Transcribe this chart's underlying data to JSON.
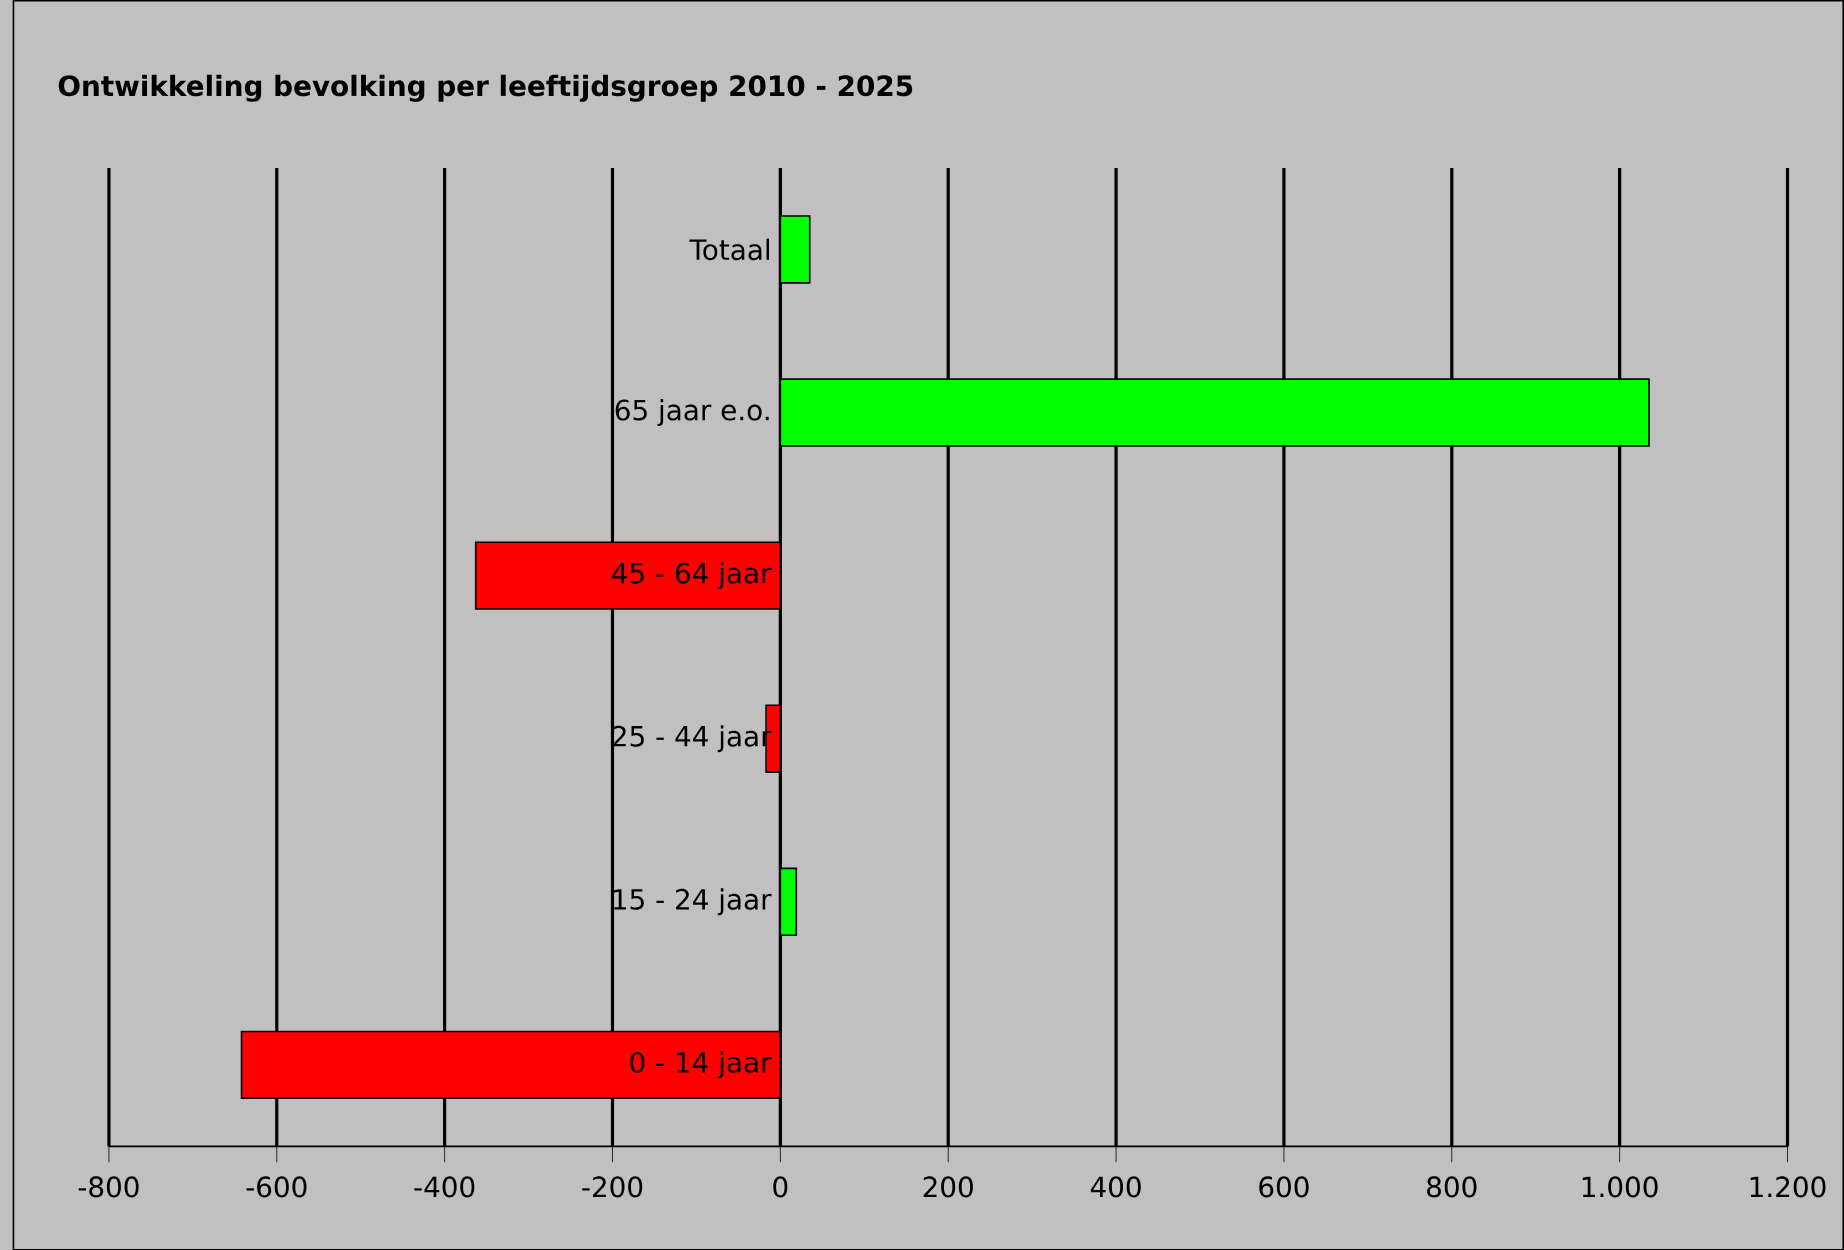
{
  "chart_data": {
    "type": "bar",
    "orientation": "horizontal",
    "title": "Ontwikkeling bevolking per leeftijdsgroep 2010 - 2025",
    "categories": [
      "Totaal",
      "65 jaar e.o.",
      "45 - 64 jaar",
      "25 - 44 jaar",
      "15 - 24 jaar",
      "0 - 14 jaar"
    ],
    "values": [
      35,
      1035,
      -363,
      -17,
      19,
      -642
    ],
    "colors": [
      "#00ff00",
      "#00ff00",
      "#ff0000",
      "#ff0000",
      "#00ff00",
      "#ff0000"
    ],
    "xlim": [
      -800,
      1200
    ],
    "xticks": [
      -800,
      -600,
      -400,
      -200,
      0,
      200,
      400,
      600,
      800,
      {
        "value": 1000,
        "label": "1.000"
      },
      {
        "value": 1200,
        "label": "1.200"
      }
    ],
    "grid": "x"
  }
}
